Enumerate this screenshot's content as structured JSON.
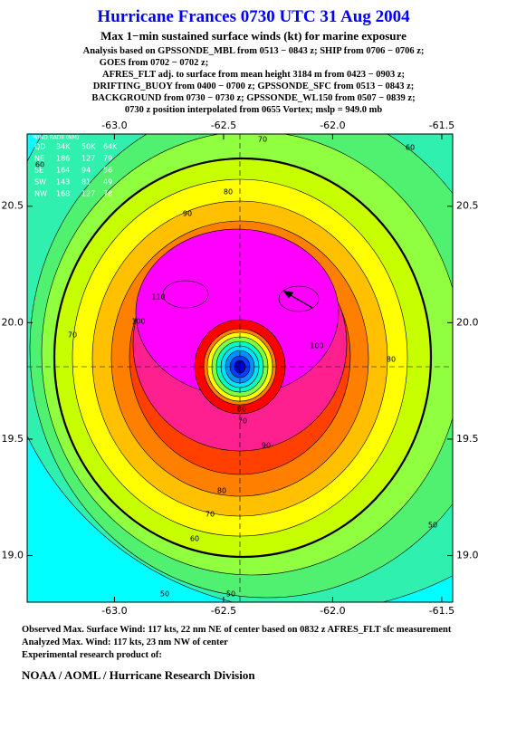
{
  "header": {
    "title": "Hurricane Frances 0730 UTC 31 Aug 2004",
    "subtitle": "Max 1−min sustained surface winds (kt) for marine exposure",
    "lines": [
      "Analysis based on  GPSSONDE_MBL from 0513 − 0843 z;  SHIP from 0706 − 0706 z;",
      "GOES from 0702 − 0702 z;",
      "AFRES_FLT adj. to surface from mean height 3184 m from 0423 − 0903 z;",
      "DRIFTING_BUOY from 0400 − 0700 z;  GPSSONDE_SFC from 0513 − 0843 z;",
      "BACKGROUND from 0730 − 0730 z;  GPSSONDE_WL150 from 0507 − 0839 z;",
      "0730 z position interpolated from 0655 Vortex; mslp = 949.0 mb"
    ]
  },
  "map": {
    "xlim": [
      -63.4,
      -61.45
    ],
    "ylim": [
      18.8,
      20.81
    ],
    "xticks": [
      {
        "value": -63,
        "label": "-63.0"
      },
      {
        "value": -62.5,
        "label": "-62.5"
      },
      {
        "value": -62,
        "label": "-62.0"
      },
      {
        "value": -61.5,
        "label": "-61.5"
      }
    ],
    "yticks": [
      {
        "value": 19,
        "label": "19.0"
      },
      19.5,
      {
        "value": 20,
        "label": "20.0"
      },
      20.5
    ],
    "wind_radii": {
      "title": "WIND RADII (NM)",
      "header": [
        "QD",
        "34K",
        "50K",
        "64K"
      ],
      "rows": [
        [
          "NE",
          "186",
          "127",
          "79"
        ],
        [
          "SE",
          "164",
          "94",
          "56"
        ],
        [
          "SW",
          "143",
          "81",
          "49"
        ],
        [
          "NW",
          "168",
          "127",
          "78"
        ]
      ]
    },
    "contour_labels": [
      "70",
      "60",
      "80",
      "90",
      "110",
      "100",
      "70",
      "80",
      "100",
      "80",
      "70",
      "90",
      "80",
      "70",
      "60",
      "50",
      "50",
      "50",
      "60"
    ]
  },
  "footer": {
    "lines": [
      "Observed Max. Surface Wind: 117 kts, 22 nm NE of center based on 0832 z AFRES_FLT sfc measurement",
      "Analyzed Max. Wind: 117 kts, 23 nm NW of center",
      "Experimental research product of:"
    ],
    "org": "NOAA / AOML / Hurricane Research Division"
  }
}
